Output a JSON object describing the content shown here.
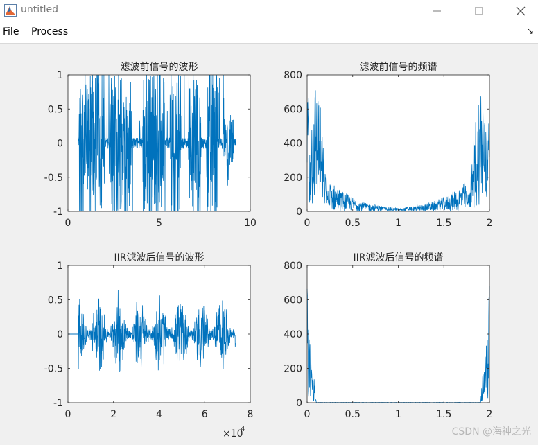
{
  "window": {
    "title": "untitled",
    "icon": "matlab-figure-icon",
    "controls": [
      "minimize-icon",
      "maximize-icon",
      "close-icon"
    ]
  },
  "menubar": {
    "items": [
      "File",
      "Process"
    ],
    "dock_icon": "dock-arrow-icon"
  },
  "watermark": "CSDN @海神之光",
  "colors": {
    "line": "#0072bd",
    "axes_bg": "#ffffff",
    "figure_bg": "#f0f0f0"
  },
  "chart_data": [
    {
      "type": "line",
      "title": "滤波前信号的波形",
      "xlim": [
        0,
        10
      ],
      "ylim": [
        -1,
        1
      ],
      "xticks": [
        "0",
        "5",
        "10"
      ],
      "yticks": [
        "-1",
        "-0.5",
        "0",
        "0.5",
        "1"
      ],
      "x_exponent_label": "",
      "description_values": {
        "signal_start": 0.55,
        "signal_end": 9.2,
        "bursts": [
          {
            "from": 0.6,
            "to": 2.0,
            "amp": 1.0
          },
          {
            "from": 2.3,
            "to": 3.5,
            "amp": 1.0
          },
          {
            "from": 4.1,
            "to": 5.3,
            "amp": 1.0
          },
          {
            "from": 5.6,
            "to": 6.2,
            "amp": 1.0
          },
          {
            "from": 6.6,
            "to": 7.3,
            "amp": 1.0
          },
          {
            "from": 7.6,
            "to": 8.2,
            "amp": 1.0
          },
          {
            "from": 8.5,
            "to": 9.1,
            "amp": 0.35
          }
        ]
      }
    },
    {
      "type": "line",
      "title": "滤波前信号的频谱",
      "xlim": [
        0,
        2
      ],
      "ylim": [
        0,
        800
      ],
      "xticks": [
        "0",
        "0.5",
        "1",
        "1.5",
        "2"
      ],
      "yticks": [
        "0",
        "200",
        "400",
        "600",
        "800"
      ],
      "x_exponent_label": "",
      "description_values": {
        "peak_left": 760,
        "peak_right": 760,
        "mid_level": 20,
        "edge_value": 690
      }
    },
    {
      "type": "line",
      "title": "IIR滤波后信号的波形",
      "xlim": [
        0,
        80000
      ],
      "ylim": [
        -1,
        1
      ],
      "xticks": [
        "0",
        "2",
        "4",
        "6",
        "8"
      ],
      "yticks": [
        "-1",
        "-0.5",
        "0",
        "0.5",
        "1"
      ],
      "x_exponent_label": "×10",
      "x_exponent_power": "4",
      "description_values": {
        "signal_start": 4500,
        "signal_end": 73500,
        "max_amp": 0.7
      }
    },
    {
      "type": "line",
      "title": "IIR滤波后信号的频谱",
      "xlim": [
        0,
        2
      ],
      "ylim": [
        0,
        800
      ],
      "xticks": [
        "0",
        "0.5",
        "1",
        "1.5",
        "2"
      ],
      "yticks": [
        "0",
        "200",
        "400",
        "600",
        "800"
      ],
      "x_exponent_label": "",
      "description_values": {
        "edge_value": 690,
        "lobe_peak": 470,
        "lobe_width": 0.1
      }
    }
  ]
}
